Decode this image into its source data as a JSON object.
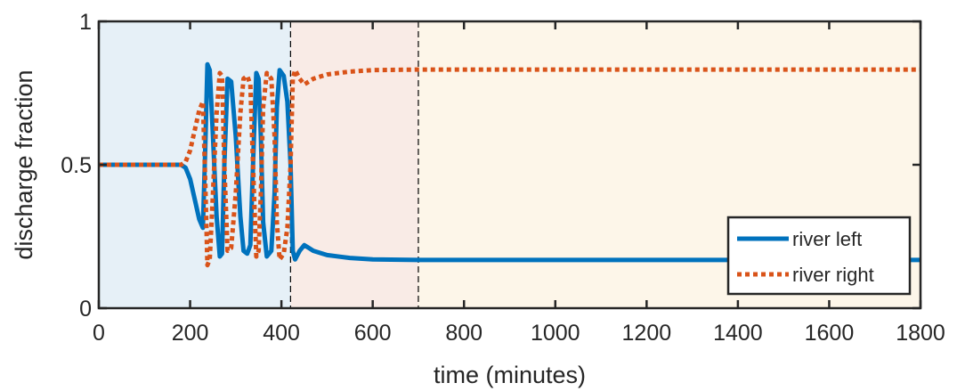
{
  "chart_data": {
    "type": "line",
    "title": "",
    "xlabel": "time (minutes)",
    "ylabel": "discharge fraction",
    "xlim": [
      0,
      1800
    ],
    "ylim": [
      0,
      1
    ],
    "xticks": [
      0,
      200,
      400,
      600,
      800,
      1000,
      1200,
      1400,
      1600,
      1800
    ],
    "xtick_labels": [
      "0",
      "200",
      "400",
      "600",
      "800",
      "1000",
      "1200",
      "1400",
      "1600",
      "1800"
    ],
    "yticks": [
      0,
      0.5,
      1
    ],
    "ytick_labels": [
      "0",
      "0.5",
      "1"
    ],
    "grid": false,
    "legend_position": "bottom-right",
    "shaded_regions": [
      {
        "x0": 0,
        "x1": 420,
        "color": "#e6f0f7"
      },
      {
        "x0": 420,
        "x1": 700,
        "color": "#f9ebe6"
      },
      {
        "x0": 700,
        "x1": 1800,
        "color": "#fdf6e9"
      }
    ],
    "vlines": [
      420,
      700
    ],
    "series": [
      {
        "name": "river left",
        "color": "#0072bd",
        "style": "solid",
        "x": [
          0,
          180,
          190,
          200,
          210,
          220,
          228,
          233,
          238,
          243,
          250,
          258,
          265,
          270,
          275,
          282,
          290,
          300,
          310,
          317,
          325,
          332,
          340,
          345,
          350,
          355,
          360,
          368,
          378,
          385,
          390,
          396,
          405,
          413,
          420,
          425,
          430,
          440,
          450,
          460,
          470,
          500,
          550,
          600,
          700,
          900,
          1200,
          1500,
          1800
        ],
        "values": [
          0.5,
          0.5,
          0.49,
          0.45,
          0.38,
          0.31,
          0.28,
          0.55,
          0.85,
          0.83,
          0.6,
          0.32,
          0.18,
          0.19,
          0.5,
          0.8,
          0.79,
          0.6,
          0.32,
          0.2,
          0.19,
          0.22,
          0.6,
          0.82,
          0.8,
          0.6,
          0.3,
          0.18,
          0.2,
          0.4,
          0.7,
          0.83,
          0.81,
          0.72,
          0.5,
          0.2,
          0.17,
          0.2,
          0.22,
          0.21,
          0.2,
          0.185,
          0.175,
          0.17,
          0.168,
          0.168,
          0.168,
          0.168,
          0.168
        ],
        "label": "river left"
      },
      {
        "name": "river right",
        "color": "#d95319",
        "style": "dotted",
        "x": [
          0,
          180,
          190,
          200,
          210,
          220,
          228,
          233,
          238,
          243,
          250,
          258,
          265,
          270,
          275,
          282,
          290,
          300,
          310,
          317,
          325,
          332,
          340,
          345,
          350,
          355,
          360,
          368,
          378,
          385,
          390,
          396,
          405,
          413,
          420,
          425,
          430,
          440,
          450,
          460,
          470,
          500,
          550,
          600,
          700,
          900,
          1200,
          1500,
          1800
        ],
        "values": [
          0.5,
          0.5,
          0.51,
          0.55,
          0.62,
          0.69,
          0.72,
          0.45,
          0.15,
          0.17,
          0.4,
          0.68,
          0.82,
          0.81,
          0.5,
          0.2,
          0.21,
          0.4,
          0.68,
          0.8,
          0.81,
          0.78,
          0.4,
          0.18,
          0.2,
          0.4,
          0.7,
          0.82,
          0.8,
          0.6,
          0.3,
          0.17,
          0.19,
          0.28,
          0.5,
          0.8,
          0.83,
          0.8,
          0.78,
          0.79,
          0.8,
          0.815,
          0.825,
          0.83,
          0.832,
          0.832,
          0.832,
          0.832,
          0.832
        ],
        "label": "river right"
      }
    ]
  }
}
